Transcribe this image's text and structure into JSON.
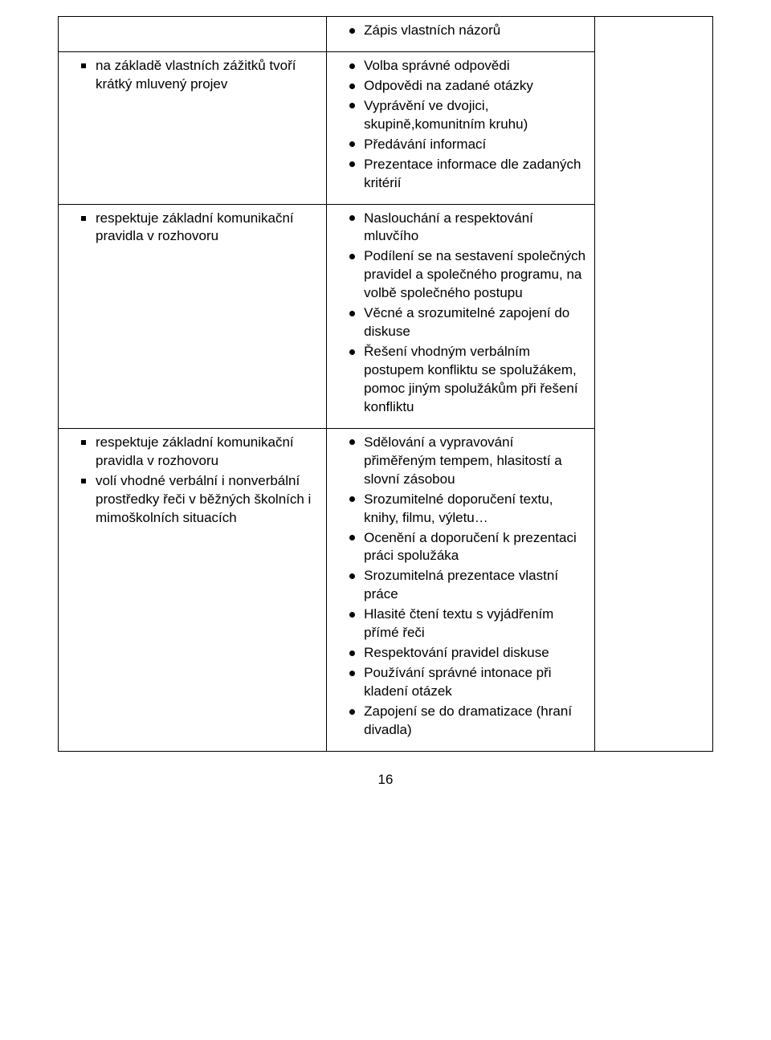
{
  "rows": [
    {
      "left": [],
      "right": [
        "Zápis vlastních názorů"
      ]
    },
    {
      "left": [
        "na základě vlastních zážitků tvoří krátký mluvený projev"
      ],
      "right": [
        "Volba správné odpovědi",
        "Odpovědi na zadané otázky",
        "Vyprávění ve dvojici, skupině,komunitním kruhu)",
        "Předávání informací",
        "Prezentace informace dle zadaných kritérií"
      ]
    },
    {
      "left": [
        "respektuje základní komunikační pravidla v rozhovoru"
      ],
      "right": [
        "Naslouchání a respektování mluvčího",
        "Podílení se na sestavení společných pravidel a společného programu, na volbě společného postupu",
        "Věcné a srozumitelné zapojení do diskuse",
        "Řešení vhodným verbálním postupem konfliktu se spolužákem, pomoc jiným spolužákům při řešení konfliktu"
      ]
    },
    {
      "left": [
        "respektuje základní komunikační pravidla v rozhovoru",
        "volí vhodné verbální i nonverbální prostředky řeči v běžných školních i mimoškolních situacích"
      ],
      "right": [
        "Sdělování a vypravování přiměřeným tempem, hlasitostí a slovní zásobou",
        "Srozumitelné doporučení textu, knihy, filmu, výletu…",
        "Ocenění a doporučení k prezentaci práci spolužáka",
        "Srozumitelná prezentace vlastní práce",
        "Hlasité čtení textu s vyjádřením přímé řeči",
        "Respektování pravidel diskuse",
        "Používání správné intonace při kladení otázek",
        "Zapojení se do dramatizace (hraní divadla)"
      ]
    }
  ],
  "page_number": "16"
}
